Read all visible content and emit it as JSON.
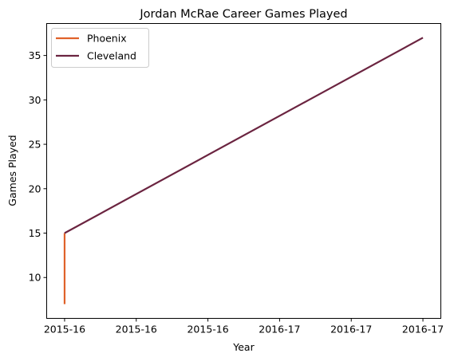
{
  "chart_data": {
    "type": "line",
    "title": "Jordan McRae Career Games Played",
    "xlabel": "Year",
    "ylabel": "Games Played",
    "x_domain": [
      0,
      1
    ],
    "xlim": [
      -0.05,
      1.05
    ],
    "ylim": [
      5.4,
      38.6
    ],
    "x_ticks": [
      {
        "pos": 0.0,
        "label": "2015-16"
      },
      {
        "pos": 0.2,
        "label": "2015-16"
      },
      {
        "pos": 0.4,
        "label": "2015-16"
      },
      {
        "pos": 0.6,
        "label": "2016-17"
      },
      {
        "pos": 0.8,
        "label": "2016-17"
      },
      {
        "pos": 1.0,
        "label": "2016-17"
      }
    ],
    "y_ticks": [
      10,
      15,
      20,
      25,
      30,
      35
    ],
    "grid": false,
    "legend_position": "top-left",
    "series": [
      {
        "name": "Phoenix",
        "color": "#e0622a",
        "points": [
          {
            "x": 0.0,
            "y": 7,
            "label": "2015-16"
          },
          {
            "x": 0.0,
            "y": 15,
            "label": "2015-16"
          }
        ]
      },
      {
        "name": "Cleveland",
        "color": "#6b2440",
        "points": [
          {
            "x": 0.0,
            "y": 15,
            "label": "2015-16"
          },
          {
            "x": 1.0,
            "y": 37,
            "label": "2016-17"
          }
        ]
      }
    ]
  }
}
